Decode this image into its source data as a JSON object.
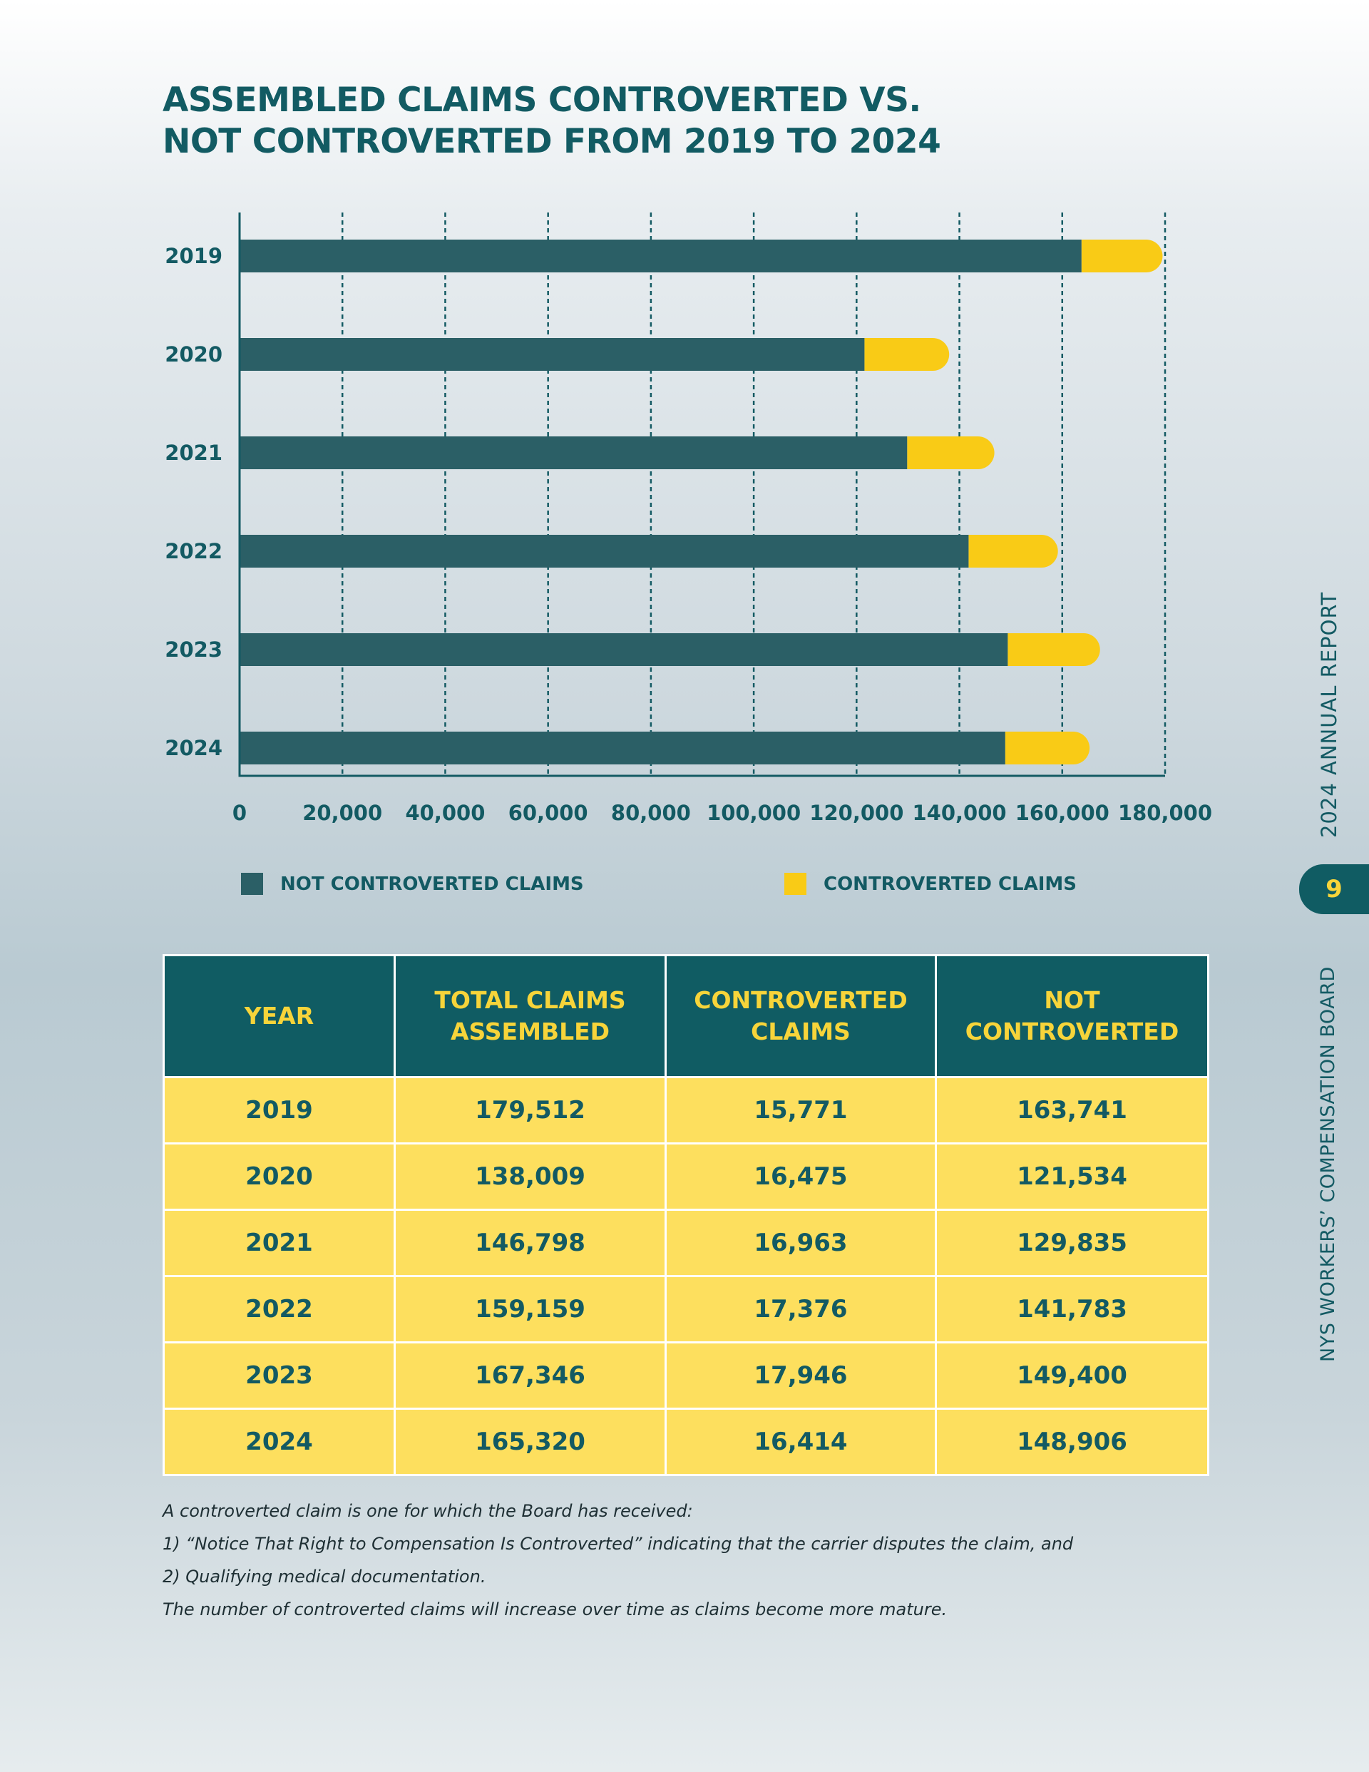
{
  "title_lines": [
    "ASSEMBLED CLAIMS CONTROVERTED VS.",
    "NOT CONTROVERTED FROM 2019 TO 2024"
  ],
  "chart_data": {
    "type": "bar",
    "orientation": "horizontal",
    "stacked": true,
    "title": "ASSEMBLED CLAIMS CONTROVERTED VS. NOT CONTROVERTED FROM 2019 TO 2024",
    "categories": [
      "2019",
      "2020",
      "2021",
      "2022",
      "2023",
      "2024"
    ],
    "series": [
      {
        "name": "NOT CONTROVERTED CLAIMS",
        "color": "#2b5f66",
        "values": [
          163741,
          121534,
          129835,
          141783,
          149400,
          148906
        ]
      },
      {
        "name": "CONTROVERTED CLAIMS",
        "color": "#f9cb16",
        "values": [
          15771,
          16475,
          16963,
          17376,
          17946,
          16414
        ]
      }
    ],
    "x_ticks": [
      "0",
      "20,000",
      "40,000",
      "60,000",
      "80,000",
      "100,000",
      "120,000",
      "140,000",
      "160,000",
      "180,000"
    ],
    "xlim": [
      0,
      180000
    ],
    "grid": "vertical dashed",
    "legend_position": "bottom"
  },
  "table": {
    "headers": [
      [
        "YEAR"
      ],
      [
        "TOTAL CLAIMS",
        "ASSEMBLED"
      ],
      [
        "CONTROVERTED",
        "CLAIMS"
      ],
      [
        "NOT",
        "CONTROVERTED"
      ]
    ],
    "rows": [
      [
        "2019",
        "179,512",
        "15,771",
        "163,741"
      ],
      [
        "2020",
        "138,009",
        "16,475",
        "121,534"
      ],
      [
        "2021",
        "146,798",
        "16,963",
        "129,835"
      ],
      [
        "2022",
        "159,159",
        "17,376",
        "141,783"
      ],
      [
        "2023",
        "167,346",
        "17,946",
        "149,400"
      ],
      [
        "2024",
        "165,320",
        "16,414",
        "148,906"
      ]
    ]
  },
  "notes": [
    "A controverted claim is one for which the Board has received:",
    "1) “Notice That Right to Compensation Is Controverted” indicating that the carrier disputes the claim, and",
    "2) Qualifying medical documentation.",
    "The number of controverted claims will increase over time as claims become more mature."
  ],
  "sidebar": {
    "report_label": "2024 ANNUAL REPORT",
    "page_number": "9",
    "org_label": "NYS WORKERS’ COMPENSATION BOARD"
  }
}
